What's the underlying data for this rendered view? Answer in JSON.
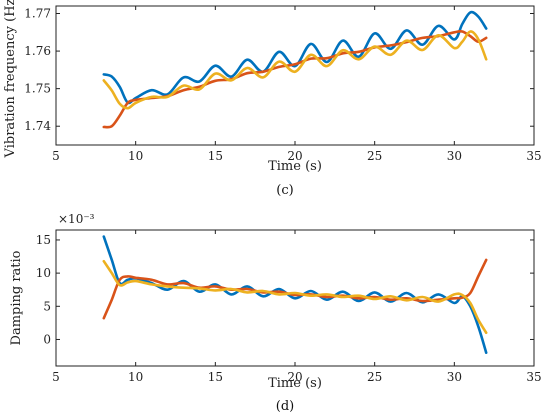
{
  "chart_data": [
    {
      "type": "line",
      "panel_label": "(c)",
      "panel_letter": "c",
      "xlabel": "Time (s)",
      "ylabel": "Vibration frequency (Hz)",
      "xlim": [
        5,
        35
      ],
      "ylim": [
        1.735,
        1.772
      ],
      "xticks": [
        5,
        10,
        15,
        20,
        25,
        30,
        35
      ],
      "yticks": [
        1.74,
        1.75,
        1.76,
        1.77
      ],
      "ytick_labels": [
        "1.74",
        "1.75",
        "1.76",
        "1.77"
      ],
      "exponent_label": "",
      "colors": [
        "#0072BD",
        "#D95319",
        "#EDB120"
      ],
      "series": [
        {
          "x": [
            8.0,
            8.5,
            9.0,
            9.5,
            10.0,
            11.0,
            12.0,
            13.0,
            14.0,
            15.0,
            16.0,
            17.0,
            18.0,
            19.0,
            20.0,
            21.0,
            22.0,
            23.0,
            24.0,
            25.0,
            26.0,
            27.0,
            28.0,
            29.0,
            30.0,
            30.5,
            31.0,
            31.5,
            32.0
          ],
          "y": [
            1.7538,
            1.7532,
            1.7505,
            1.7463,
            1.7475,
            1.7496,
            1.7485,
            1.753,
            1.7519,
            1.7561,
            1.7532,
            1.7577,
            1.7545,
            1.7598,
            1.756,
            1.7619,
            1.7571,
            1.7628,
            1.7585,
            1.7647,
            1.7606,
            1.7655,
            1.7617,
            1.7667,
            1.7631,
            1.7672,
            1.7703,
            1.7692,
            1.766
          ]
        },
        {
          "x": [
            8.0,
            8.5,
            9.0,
            9.5,
            10.0,
            11.0,
            12.0,
            13.0,
            14.0,
            15.0,
            16.0,
            17.0,
            18.0,
            19.0,
            20.0,
            21.0,
            22.0,
            23.0,
            24.0,
            25.0,
            26.0,
            27.0,
            28.0,
            29.0,
            30.0,
            30.5,
            31.0,
            31.5,
            32.0
          ],
          "y": [
            1.7398,
            1.74,
            1.7428,
            1.7462,
            1.747,
            1.7475,
            1.748,
            1.7496,
            1.7505,
            1.7521,
            1.7525,
            1.7541,
            1.7545,
            1.7558,
            1.7565,
            1.758,
            1.7581,
            1.7594,
            1.7598,
            1.761,
            1.7615,
            1.7624,
            1.7635,
            1.764,
            1.765,
            1.7652,
            1.764,
            1.7625,
            1.7635
          ]
        },
        {
          "x": [
            8.0,
            8.5,
            9.0,
            9.5,
            10.0,
            11.0,
            12.0,
            13.0,
            14.0,
            15.0,
            16.0,
            17.0,
            18.0,
            19.0,
            20.0,
            21.0,
            22.0,
            23.0,
            24.0,
            25.0,
            26.0,
            27.0,
            28.0,
            29.0,
            30.0,
            30.5,
            31.0,
            31.5,
            32.0
          ],
          "y": [
            1.7522,
            1.7495,
            1.746,
            1.7448,
            1.7462,
            1.7478,
            1.7478,
            1.7508,
            1.7498,
            1.754,
            1.7522,
            1.7555,
            1.753,
            1.7572,
            1.7545,
            1.759,
            1.756,
            1.7602,
            1.7578,
            1.7612,
            1.759,
            1.7628,
            1.7603,
            1.7642,
            1.7608,
            1.7625,
            1.7652,
            1.7632,
            1.7578
          ]
        }
      ]
    },
    {
      "type": "line",
      "panel_label": "(d)",
      "panel_letter": "d",
      "xlabel": "Time (s)",
      "ylabel": "Damping ratio",
      "xlim": [
        5,
        35
      ],
      "ylim": [
        -0.004,
        0.0165
      ],
      "xticks": [
        5,
        10,
        15,
        20,
        25,
        30,
        35
      ],
      "yticks": [
        0,
        0.005,
        0.01,
        0.015
      ],
      "ytick_labels": [
        "0",
        "5",
        "10",
        "15"
      ],
      "exponent_label": "×10⁻³",
      "colors": [
        "#0072BD",
        "#D95319",
        "#EDB120"
      ],
      "series": [
        {
          "x": [
            8.0,
            8.5,
            9.0,
            9.5,
            10.0,
            11.0,
            12.0,
            13.0,
            14.0,
            15.0,
            16.0,
            17.0,
            18.0,
            19.0,
            20.0,
            21.0,
            22.0,
            23.0,
            24.0,
            25.0,
            26.0,
            27.0,
            28.0,
            29.0,
            30.0,
            30.5,
            31.0,
            31.5,
            32.0
          ],
          "y": [
            0.0155,
            0.012,
            0.0085,
            0.009,
            0.0092,
            0.0085,
            0.0075,
            0.0088,
            0.0072,
            0.0083,
            0.0068,
            0.008,
            0.0065,
            0.0076,
            0.0062,
            0.0073,
            0.006,
            0.0072,
            0.0058,
            0.0071,
            0.0057,
            0.007,
            0.0056,
            0.0068,
            0.0055,
            0.0065,
            0.005,
            0.002,
            -0.002
          ]
        },
        {
          "x": [
            8.0,
            8.5,
            9.0,
            9.5,
            10.0,
            11.0,
            12.0,
            13.0,
            14.0,
            15.0,
            16.0,
            17.0,
            18.0,
            19.0,
            20.0,
            21.0,
            22.0,
            23.0,
            24.0,
            25.0,
            26.0,
            27.0,
            28.0,
            29.0,
            30.0,
            30.5,
            31.0,
            31.5,
            32.0
          ],
          "y": [
            0.0032,
            0.006,
            0.009,
            0.0095,
            0.0093,
            0.009,
            0.0083,
            0.0085,
            0.0078,
            0.008,
            0.0075,
            0.0076,
            0.0071,
            0.0072,
            0.0067,
            0.0068,
            0.0064,
            0.0066,
            0.0062,
            0.0064,
            0.006,
            0.0062,
            0.0058,
            0.006,
            0.0062,
            0.0063,
            0.007,
            0.0095,
            0.012
          ]
        },
        {
          "x": [
            8.0,
            8.5,
            9.0,
            9.5,
            10.0,
            11.0,
            12.0,
            13.0,
            14.0,
            15.0,
            16.0,
            17.0,
            18.0,
            19.0,
            20.0,
            21.0,
            22.0,
            23.0,
            24.0,
            25.0,
            26.0,
            27.0,
            28.0,
            29.0,
            30.0,
            30.5,
            31.0,
            31.5,
            32.0
          ],
          "y": [
            0.0118,
            0.01,
            0.0082,
            0.0086,
            0.0088,
            0.0083,
            0.008,
            0.0078,
            0.0077,
            0.0074,
            0.0076,
            0.0071,
            0.0073,
            0.0068,
            0.007,
            0.0066,
            0.0068,
            0.0064,
            0.0066,
            0.0061,
            0.0065,
            0.0059,
            0.0064,
            0.0057,
            0.0068,
            0.0067,
            0.0055,
            0.003,
            0.001
          ]
        }
      ]
    }
  ]
}
